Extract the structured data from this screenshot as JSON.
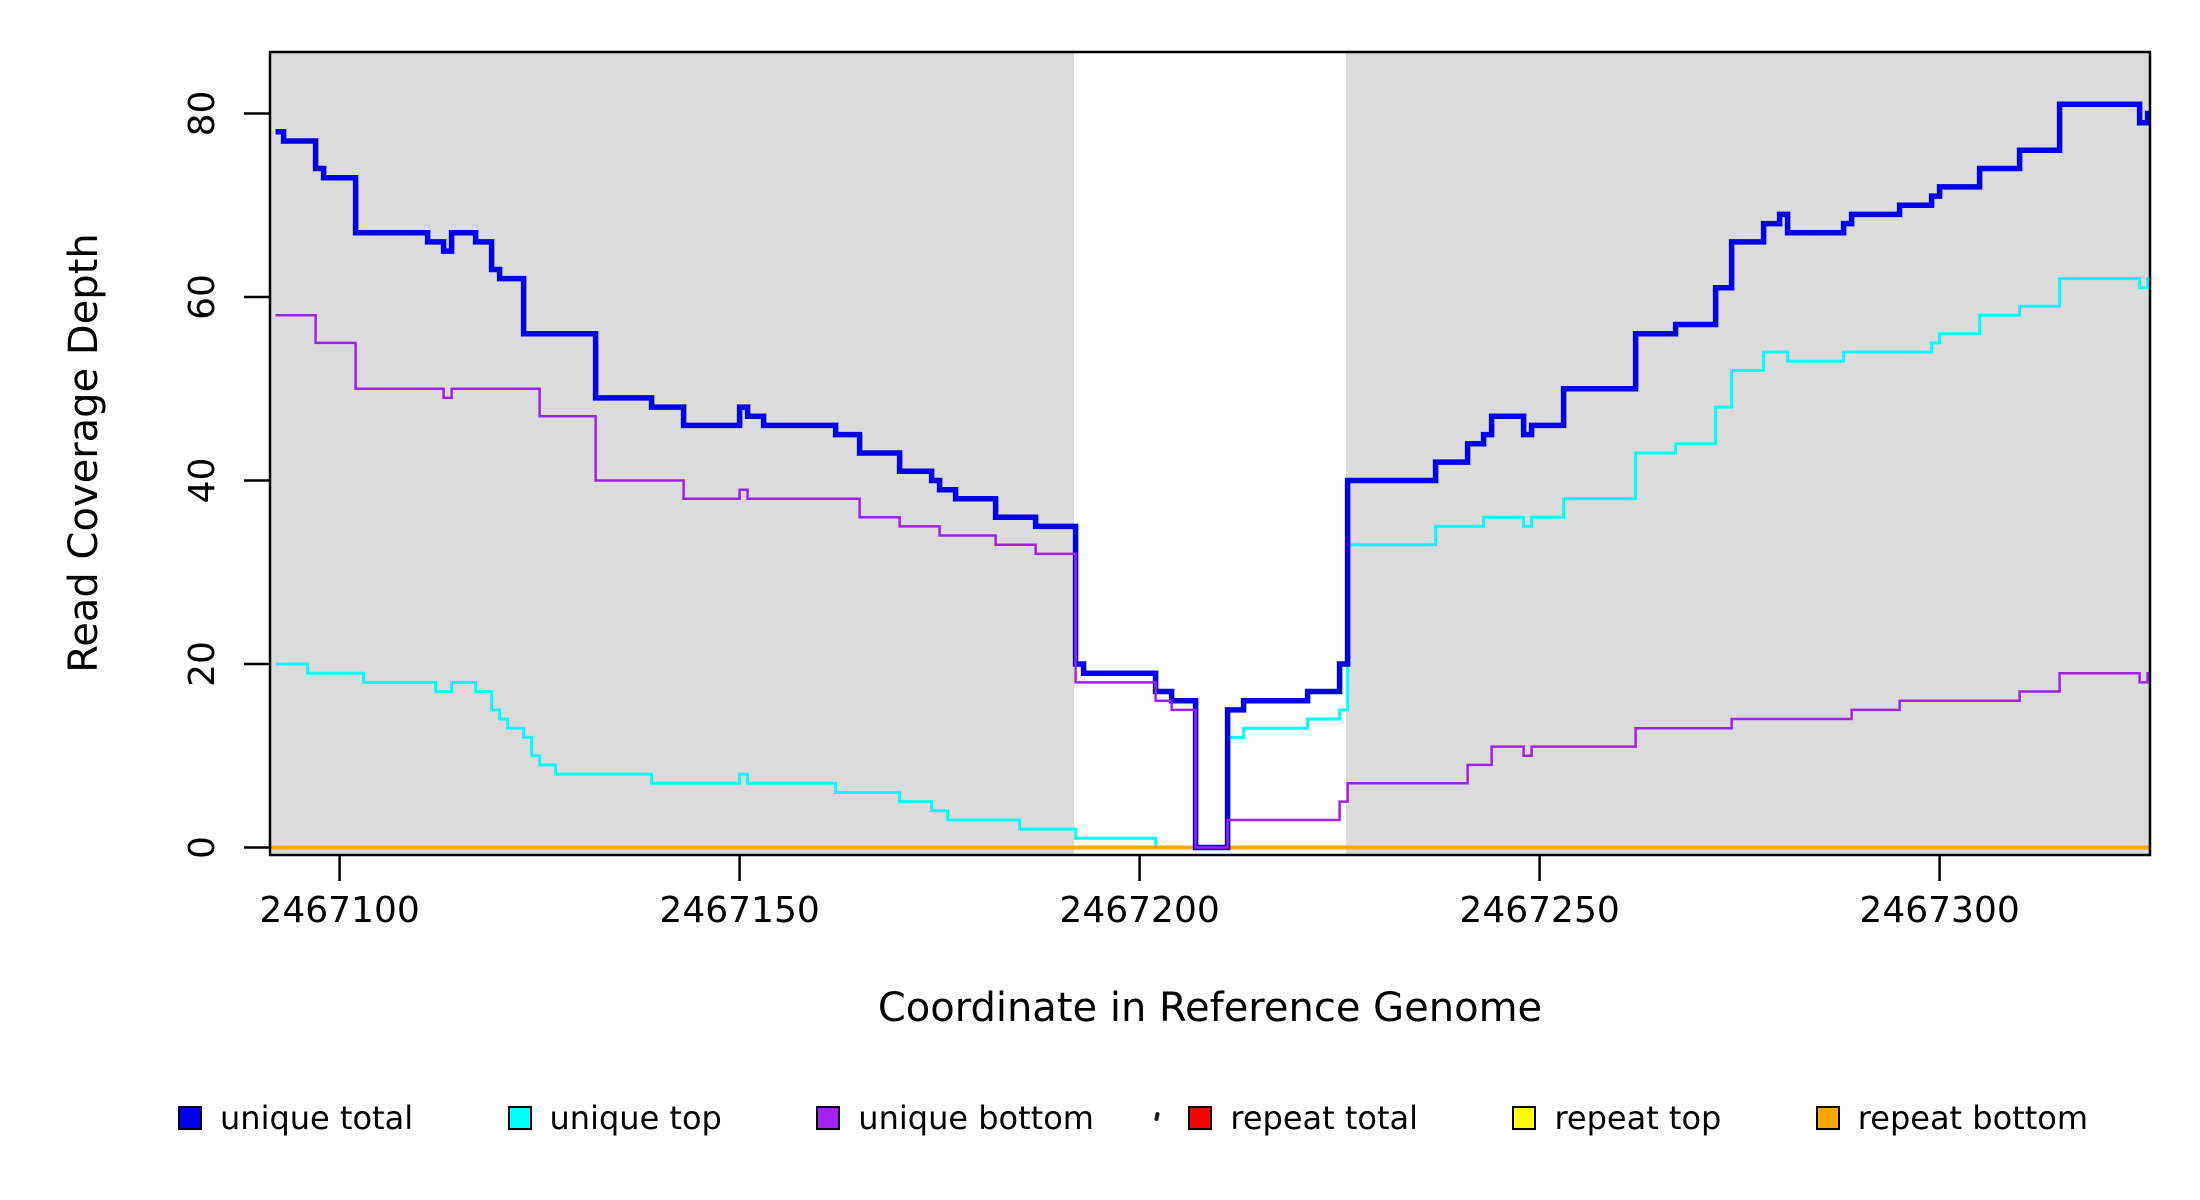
{
  "chart_data": {
    "type": "line",
    "subtype": "step-coverage",
    "title": "",
    "xlabel": "Coordinate in Reference Genome",
    "ylabel": "Read Coverage Depth",
    "x_ticks": [
      2467100,
      2467150,
      2467200,
      2467250,
      2467300
    ],
    "y_ticks": [
      0,
      20,
      40,
      60,
      80
    ],
    "x_range": [
      2467091.3,
      2467326.3
    ],
    "y_range": [
      0,
      86
    ],
    "grid": false,
    "legend_position": "bottom-horizontal",
    "shade_color": "#DBDBDB",
    "shaded_x_regions": [
      {
        "from": 2467091.3,
        "to": 2467191.8
      },
      {
        "from": 2467225.8,
        "to": 2467326.3
      }
    ],
    "unshaded_gap": {
      "from": 2467191.8,
      "to": 2467225.8
    },
    "series": [
      {
        "name": "unique total",
        "color": "#0000EE",
        "line_width": 5.5,
        "points": [
          [
            2467092,
            78
          ],
          [
            2467093,
            77
          ],
          [
            2467097,
            74
          ],
          [
            2467098,
            73
          ],
          [
            2467102,
            67
          ],
          [
            2467111,
            66
          ],
          [
            2467113,
            65
          ],
          [
            2467114,
            67
          ],
          [
            2467117,
            66
          ],
          [
            2467119,
            63
          ],
          [
            2467120,
            62
          ],
          [
            2467123,
            56
          ],
          [
            2467132,
            49
          ],
          [
            2467139,
            48
          ],
          [
            2467143,
            46
          ],
          [
            2467150,
            48
          ],
          [
            2467151,
            47
          ],
          [
            2467153,
            46
          ],
          [
            2467162,
            45
          ],
          [
            2467165,
            43
          ],
          [
            2467170,
            41
          ],
          [
            2467174,
            40
          ],
          [
            2467175,
            39
          ],
          [
            2467177,
            38
          ],
          [
            2467182,
            36
          ],
          [
            2467187,
            35
          ],
          [
            2467192,
            20
          ],
          [
            2467193,
            19
          ],
          [
            2467202,
            17
          ],
          [
            2467204,
            16
          ],
          [
            2467207,
            0
          ],
          [
            2467211,
            15
          ],
          [
            2467213,
            16
          ],
          [
            2467221,
            17
          ],
          [
            2467225,
            20
          ],
          [
            2467226,
            40
          ],
          [
            2467237,
            42
          ],
          [
            2467241,
            44
          ],
          [
            2467243,
            45
          ],
          [
            2467244,
            47
          ],
          [
            2467248,
            45
          ],
          [
            2467249,
            46
          ],
          [
            2467253,
            50
          ],
          [
            2467262,
            56
          ],
          [
            2467267,
            57
          ],
          [
            2467272,
            61
          ],
          [
            2467274,
            66
          ],
          [
            2467278,
            68
          ],
          [
            2467280,
            69
          ],
          [
            2467281,
            67
          ],
          [
            2467288,
            68
          ],
          [
            2467289,
            69
          ],
          [
            2467295,
            70
          ],
          [
            2467299,
            71
          ],
          [
            2467300,
            72
          ],
          [
            2467305,
            74
          ],
          [
            2467310,
            76
          ],
          [
            2467315,
            81
          ],
          [
            2467325,
            79
          ],
          [
            2467326,
            80
          ]
        ]
      },
      {
        "name": "unique top",
        "color": "#00FFFF",
        "line_width": 3,
        "points": [
          [
            2467092,
            20
          ],
          [
            2467096,
            19
          ],
          [
            2467103,
            18
          ],
          [
            2467112,
            17
          ],
          [
            2467114,
            18
          ],
          [
            2467117,
            17
          ],
          [
            2467119,
            15
          ],
          [
            2467120,
            14
          ],
          [
            2467121,
            13
          ],
          [
            2467123,
            12
          ],
          [
            2467124,
            10
          ],
          [
            2467125,
            9
          ],
          [
            2467127,
            8
          ],
          [
            2467139,
            7
          ],
          [
            2467150,
            8
          ],
          [
            2467151,
            7
          ],
          [
            2467162,
            6
          ],
          [
            2467170,
            5
          ],
          [
            2467174,
            4
          ],
          [
            2467176,
            3
          ],
          [
            2467185,
            2
          ],
          [
            2467192,
            1
          ],
          [
            2467202,
            0
          ],
          [
            2467211,
            12
          ],
          [
            2467213,
            13
          ],
          [
            2467221,
            14
          ],
          [
            2467225,
            15
          ],
          [
            2467226,
            33
          ],
          [
            2467237,
            35
          ],
          [
            2467243,
            36
          ],
          [
            2467248,
            35
          ],
          [
            2467249,
            36
          ],
          [
            2467253,
            38
          ],
          [
            2467262,
            43
          ],
          [
            2467267,
            44
          ],
          [
            2467272,
            48
          ],
          [
            2467274,
            52
          ],
          [
            2467278,
            54
          ],
          [
            2467281,
            53
          ],
          [
            2467288,
            54
          ],
          [
            2467299,
            55
          ],
          [
            2467300,
            56
          ],
          [
            2467305,
            58
          ],
          [
            2467310,
            59
          ],
          [
            2467315,
            62
          ],
          [
            2467325,
            61
          ],
          [
            2467326,
            62
          ]
        ]
      },
      {
        "name": "unique bottom",
        "color": "#A020F0",
        "line_width": 2.5,
        "points": [
          [
            2467092,
            58
          ],
          [
            2467097,
            55
          ],
          [
            2467102,
            50
          ],
          [
            2467113,
            49
          ],
          [
            2467114,
            50
          ],
          [
            2467125,
            47
          ],
          [
            2467132,
            40
          ],
          [
            2467143,
            38
          ],
          [
            2467150,
            39
          ],
          [
            2467151,
            38
          ],
          [
            2467165,
            36
          ],
          [
            2467170,
            35
          ],
          [
            2467175,
            34
          ],
          [
            2467182,
            33
          ],
          [
            2467187,
            32
          ],
          [
            2467192,
            18
          ],
          [
            2467202,
            16
          ],
          [
            2467204,
            15
          ],
          [
            2467207,
            0
          ],
          [
            2467211,
            3
          ],
          [
            2467225,
            5
          ],
          [
            2467226,
            7
          ],
          [
            2467241,
            9
          ],
          [
            2467244,
            11
          ],
          [
            2467248,
            10
          ],
          [
            2467249,
            11
          ],
          [
            2467262,
            13
          ],
          [
            2467274,
            14
          ],
          [
            2467289,
            15
          ],
          [
            2467295,
            16
          ],
          [
            2467310,
            17
          ],
          [
            2467315,
            19
          ],
          [
            2467325,
            18
          ],
          [
            2467326,
            19
          ]
        ]
      },
      {
        "name": "repeat total",
        "color": "#FF0000",
        "line_width": 2.5,
        "points": [
          [
            2467091.3,
            0
          ]
        ]
      },
      {
        "name": "repeat top",
        "color": "#FFFF00",
        "line_width": 2.5,
        "points": [
          [
            2467091.3,
            0
          ]
        ]
      },
      {
        "name": "repeat bottom",
        "color": "#FFA500",
        "line_width": 4,
        "points": [
          [
            2467091.3,
            0
          ]
        ]
      }
    ]
  }
}
